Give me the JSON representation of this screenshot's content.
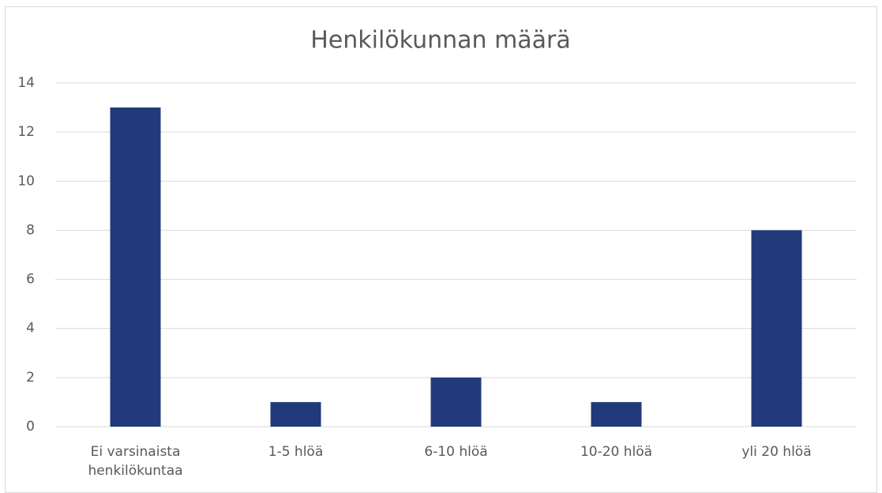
{
  "chart_data": {
    "type": "bar",
    "title": "Henkilökunnan määrä",
    "categories": [
      "Ei varsinaista henkilökuntaa",
      "1-5 hlöä",
      "6-10 hlöä",
      "10-20 hlöä",
      "yli 20 hlöä"
    ],
    "values": [
      13,
      1,
      2,
      1,
      8
    ],
    "color": "#203a7a",
    "ylim": [
      0,
      14
    ],
    "yticks": [
      0,
      2,
      4,
      6,
      8,
      10,
      12,
      14
    ],
    "grid": true
  }
}
